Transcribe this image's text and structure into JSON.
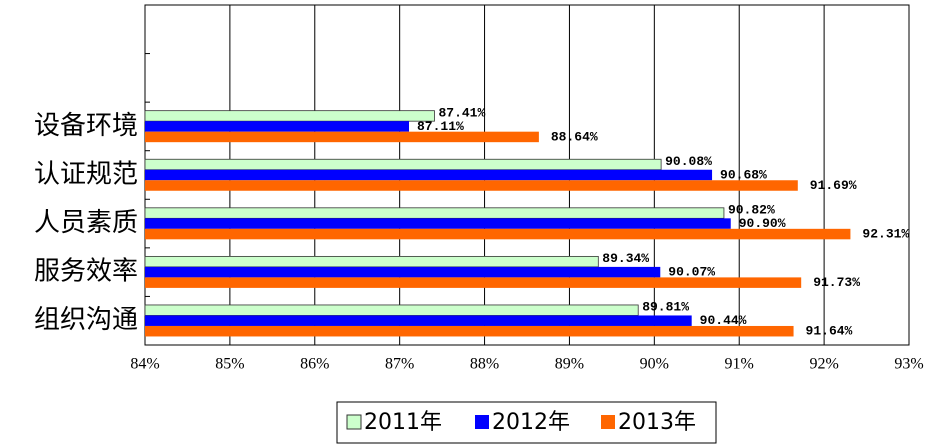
{
  "chart_data": {
    "type": "barh",
    "categories": [
      null,
      null,
      "设备环境",
      "认证规范",
      "人员素质",
      "服务效率",
      "组织沟通"
    ],
    "series": [
      {
        "name": "2011年",
        "color": "#ccffcc",
        "values": [
          null,
          null,
          87.41,
          90.08,
          90.82,
          89.34,
          89.81
        ],
        "value_labels": [
          null,
          null,
          "87.41%",
          "90.08%",
          "90.82%",
          "89.34%",
          "89.81%"
        ]
      },
      {
        "name": "2012年",
        "color": "#0000ff",
        "values": [
          null,
          null,
          87.11,
          90.68,
          90.9,
          90.07,
          90.44
        ],
        "value_labels": [
          null,
          null,
          "87.11%",
          "90.68%",
          "90.90%",
          "90.07%",
          "90.44%"
        ]
      },
      {
        "name": "2013年",
        "color": "#ff6600",
        "values": [
          null,
          null,
          88.64,
          91.69,
          92.31,
          91.73,
          91.64
        ],
        "value_labels": [
          null,
          null,
          "88.64%",
          "91.69%",
          "92.31%",
          "91.73%",
          "91.64%"
        ]
      }
    ],
    "xlim": [
      84,
      93
    ],
    "xticks": [
      {
        "value": 84,
        "label": "84%"
      },
      {
        "value": 85,
        "label": "85%"
      },
      {
        "value": 86,
        "label": "86%"
      },
      {
        "value": 87,
        "label": "87%"
      },
      {
        "value": 88,
        "label": "88%"
      },
      {
        "value": 89,
        "label": "89%"
      },
      {
        "value": 90,
        "label": "90%"
      },
      {
        "value": 91,
        "label": "91%"
      },
      {
        "value": 92,
        "label": "92%"
      },
      {
        "value": 93,
        "label": "93%"
      }
    ],
    "grid": true,
    "legend": "bottom"
  }
}
